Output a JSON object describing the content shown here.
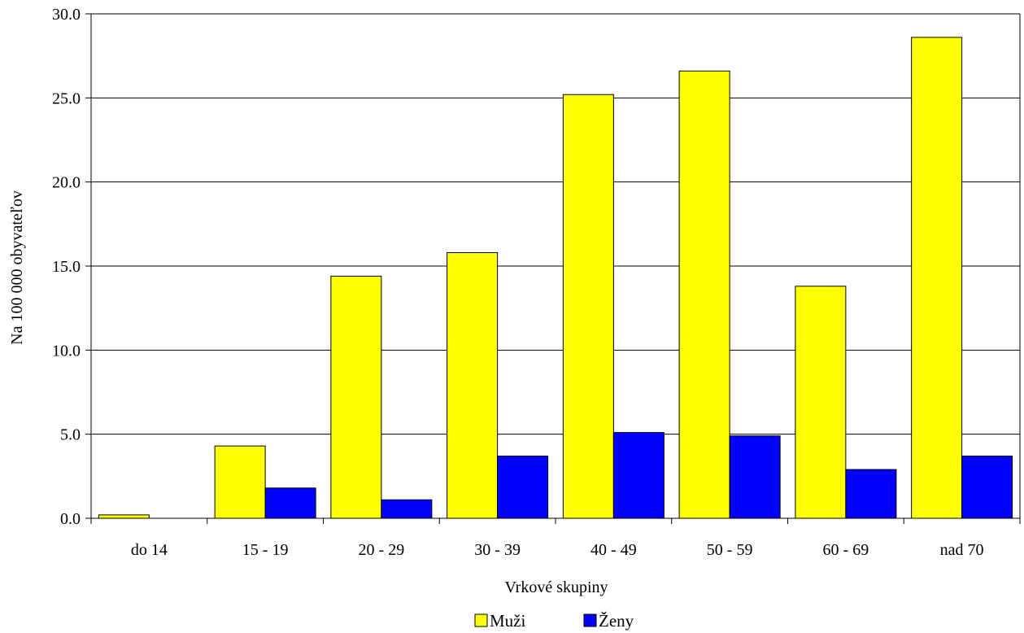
{
  "chart_data": {
    "type": "bar",
    "title": "",
    "xlabel": "Vrkové skupiny",
    "ylabel": "Na 100 000 obyvateľov",
    "categories": [
      "do 14",
      "15 - 19",
      "20 - 29",
      "30 - 39",
      "40 - 49",
      "50 - 59",
      "60 - 69",
      "nad 70"
    ],
    "series": [
      {
        "name": "Muži",
        "color": "#FFFF00",
        "values": [
          0.2,
          4.3,
          14.4,
          15.8,
          25.2,
          26.6,
          13.8,
          28.6
        ]
      },
      {
        "name": "Ženy",
        "color": "#0000FF",
        "values": [
          0.0,
          1.8,
          1.1,
          3.7,
          5.1,
          4.9,
          2.9,
          3.7
        ]
      }
    ],
    "ylim": [
      0,
      30
    ],
    "yticks": [
      "0.0",
      "5.0",
      "10.0",
      "15.0",
      "20.0",
      "25.0",
      "30.0"
    ],
    "grid": true,
    "legend": "bottom-center"
  }
}
